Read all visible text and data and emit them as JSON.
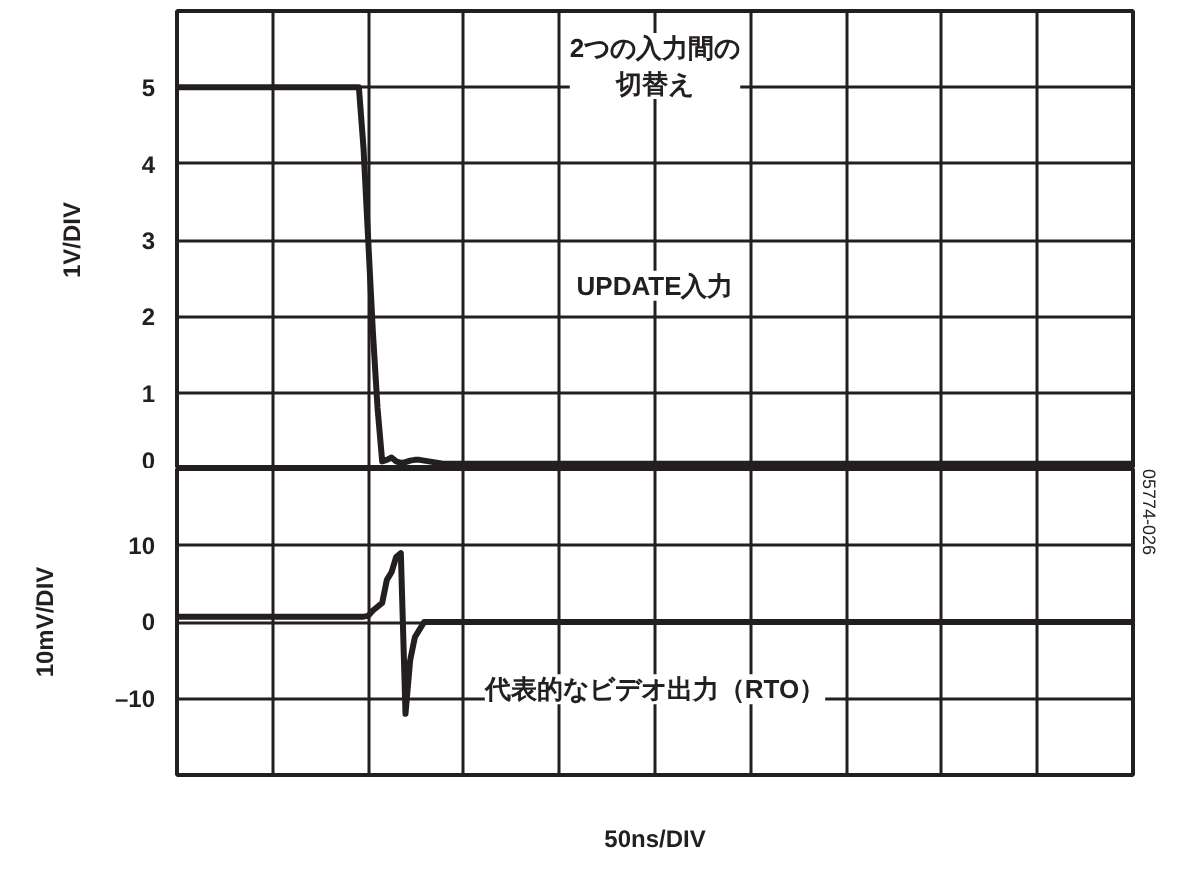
{
  "chart_data": [
    {
      "type": "line",
      "ylabel": "1V/DIV",
      "categories": [
        null,
        null,
        null,
        null,
        null,
        null,
        null,
        null,
        null,
        null,
        null,
        null,
        null,
        null,
        null,
        null,
        null,
        null,
        null,
        null,
        null,
        null,
        null,
        null,
        null,
        null,
        null,
        null,
        null,
        null,
        null,
        null,
        null,
        null,
        null,
        null,
        null,
        null,
        null,
        null,
        null,
        null,
        null,
        null,
        null,
        null,
        null,
        null,
        null,
        null,
        null,
        null,
        null,
        null,
        null,
        null,
        null,
        null,
        null,
        null,
        null,
        null,
        null,
        null,
        null,
        null,
        null,
        null,
        null,
        null,
        null,
        null,
        null,
        null,
        null,
        null,
        null,
        null,
        null,
        null,
        null,
        null,
        null,
        null,
        null,
        null,
        null,
        null,
        null,
        null,
        null,
        null,
        null,
        null,
        null,
        null,
        null,
        null,
        null,
        null,
        null,
        null,
        null,
        null,
        null,
        null,
        null,
        null,
        null,
        null,
        null,
        null,
        null,
        null,
        null,
        null,
        null,
        null,
        null,
        null,
        null,
        null,
        null,
        null,
        null,
        null,
        null,
        null,
        null,
        null,
        null,
        null,
        null,
        null,
        null,
        null,
        null,
        null,
        null,
        null,
        null,
        null,
        null,
        null,
        null,
        null,
        null,
        null,
        null,
        null,
        null,
        null,
        null,
        null,
        null,
        null,
        null,
        null,
        null,
        null,
        null,
        null,
        null,
        null,
        null,
        null,
        null,
        null,
        null,
        null,
        null,
        null,
        null,
        null,
        null,
        null,
        null,
        null,
        null,
        null,
        null,
        null,
        null,
        null,
        null,
        null,
        null,
        null,
        null,
        null,
        null,
        null,
        null,
        null,
        null,
        null,
        null,
        null,
        null,
        null,
        null,
        null,
        null,
        null,
        null,
        null
      ],
      "ylim": [
        0,
        6
      ],
      "yticks": [
        0,
        1,
        2,
        3,
        4,
        5
      ],
      "grid": true,
      "tick_labels": "y",
      "series": [
        {
          "color": "#231f20",
          "values": [
            5,
            5,
            5,
            5,
            5,
            5,
            5,
            5,
            5,
            5,
            5,
            5,
            5,
            5,
            5,
            5,
            5,
            5,
            5,
            5,
            5,
            5,
            5,
            5,
            5,
            5,
            5,
            5,
            5,
            5,
            5,
            5,
            5,
            5,
            5,
            5,
            5,
            5,
            5,
            5,
            4.2,
            3,
            1.8,
            0.8,
            0.1,
            0.12,
            0.15,
            0.1,
            0.08,
            0.09,
            0.11,
            0.12,
            0.12,
            0.11,
            0.1,
            0.09,
            0.08,
            0.07,
            0.07,
            0.07,
            0.07,
            0.07,
            0.07,
            0.07,
            0.07,
            0.07,
            0.07,
            0.07,
            0.07,
            0.07,
            0.07,
            0.07,
            0.07,
            0.07,
            0.07,
            0.07,
            0.07,
            0.07,
            0.07,
            0.07,
            0.07,
            0.07,
            0.07,
            0.07,
            0.07,
            0.07,
            0.07,
            0.07,
            0.07,
            0.07,
            0.07,
            0.07,
            0.07,
            0.07,
            0.07,
            0.07,
            0.07,
            0.07,
            0.07,
            0.07,
            0.07,
            0.07,
            0.07,
            0.07,
            0.07,
            0.07,
            0.07,
            0.07,
            0.07,
            0.07,
            0.07,
            0.07,
            0.07,
            0.07,
            0.07,
            0.07,
            0.07,
            0.07,
            0.07,
            0.07,
            0.07,
            0.07,
            0.07,
            0.07,
            0.07,
            0.07,
            0.07,
            0.07,
            0.07,
            0.07,
            0.07,
            0.07,
            0.07,
            0.07,
            0.07,
            0.07,
            0.07,
            0.07,
            0.07,
            0.07,
            0.07,
            0.07,
            0.07,
            0.07,
            0.07,
            0.07,
            0.07,
            0.07,
            0.07,
            0.07,
            0.07,
            0.07,
            0.07,
            0.07,
            0.07,
            0.07,
            0.07,
            0.07,
            0.07,
            0.07,
            0.07,
            0.07,
            0.07,
            0.07,
            0.07,
            0.07,
            0.07,
            0.07,
            0.07,
            0.07,
            0.07,
            0.07,
            0.07,
            0.07,
            0.07,
            0.07,
            0.07,
            0.07,
            0.07,
            0.07,
            0.07,
            0.07,
            0.07,
            0.07,
            0.07,
            0.07,
            0.07,
            0.07,
            0.07,
            0.07,
            0.07,
            0.07,
            0.07,
            0.07,
            0.07,
            0.07,
            0.07,
            0.07,
            0.07,
            0.07,
            0.07,
            0.07,
            0.07,
            0.07,
            0.07,
            0.07
          ]
        }
      ],
      "annotations": [
        "2つの入力間の切替え",
        "UPDATE入力"
      ]
    },
    {
      "type": "line",
      "ylabel": "10mV/DIV",
      "xlabel": "50ns/DIV",
      "categories": [
        null,
        null,
        null,
        null,
        null,
        null,
        null,
        null,
        null,
        null,
        null,
        null,
        null,
        null,
        null,
        null,
        null,
        null,
        null,
        null,
        null,
        null,
        null,
        null,
        null,
        null,
        null,
        null,
        null,
        null,
        null,
        null,
        null,
        null,
        null,
        null,
        null,
        null,
        null,
        null,
        null,
        null,
        null,
        null,
        null,
        null,
        null,
        null,
        null,
        null,
        null,
        null,
        null,
        null,
        null,
        null,
        null,
        null,
        null,
        null,
        null,
        null,
        null,
        null,
        null,
        null,
        null,
        null,
        null,
        null,
        null,
        null,
        null,
        null,
        null,
        null,
        null,
        null,
        null,
        null,
        null,
        null,
        null,
        null,
        null,
        null,
        null,
        null,
        null,
        null,
        null,
        null,
        null,
        null,
        null,
        null,
        null,
        null,
        null,
        null,
        null,
        null,
        null,
        null,
        null,
        null,
        null,
        null,
        null,
        null,
        null,
        null,
        null,
        null,
        null,
        null,
        null,
        null,
        null,
        null,
        null,
        null,
        null,
        null,
        null,
        null,
        null,
        null,
        null,
        null,
        null,
        null,
        null,
        null,
        null,
        null,
        null,
        null,
        null,
        null,
        null,
        null,
        null,
        null,
        null,
        null,
        null,
        null,
        null,
        null,
        null,
        null,
        null,
        null,
        null,
        null,
        null,
        null,
        null,
        null,
        null,
        null,
        null,
        null,
        null,
        null,
        null,
        null,
        null,
        null,
        null,
        null,
        null,
        null,
        null,
        null,
        null,
        null,
        null,
        null,
        null,
        null,
        null,
        null,
        null,
        null,
        null,
        null,
        null,
        null,
        null,
        null,
        null,
        null,
        null,
        null,
        null,
        null,
        null,
        null,
        null,
        null,
        null,
        null,
        null,
        null
      ],
      "ylim": [
        -20,
        20
      ],
      "yticks": [
        {
          "value": -20,
          "label": null
        },
        {
          "value": -10,
          "label": "–10"
        },
        0,
        10,
        {
          "value": 20,
          "label": null
        }
      ],
      "grid": true,
      "tick_labels": "y",
      "series": [
        {
          "color": "#231f20",
          "values": [
            0.7,
            0.7,
            0.7,
            0.7,
            0.7,
            0.7,
            0.7,
            0.7,
            0.7,
            0.7,
            0.7,
            0.7,
            0.7,
            0.7,
            0.7,
            0.7,
            0.7,
            0.7,
            0.7,
            0.7,
            0.7,
            0.7,
            0.7,
            0.7,
            0.7,
            0.7,
            0.7,
            0.7,
            0.7,
            0.7,
            0.7,
            0.7,
            0.7,
            0.7,
            0.7,
            0.7,
            0.7,
            0.7,
            0.7,
            0.7,
            0.7,
            0.8,
            1.5,
            2,
            2.5,
            5.5,
            6.5,
            8.5,
            9,
            -12,
            -5,
            -2,
            -1,
            0,
            0,
            0,
            0,
            0,
            0,
            0,
            0,
            0,
            0,
            0,
            0,
            0,
            0,
            0,
            0,
            0,
            0,
            0,
            0,
            0,
            0,
            0,
            0,
            0,
            0,
            0,
            0,
            0,
            0,
            0,
            0,
            0,
            0,
            0,
            0,
            0,
            0,
            0,
            0,
            0,
            0,
            0,
            0,
            0,
            0,
            0,
            0,
            0,
            0,
            0,
            0,
            0,
            0,
            0,
            0,
            0,
            0,
            0,
            0,
            0,
            0,
            0,
            0,
            0,
            0,
            0,
            0,
            0,
            0,
            0,
            0,
            0,
            0,
            0,
            0,
            0,
            0,
            0,
            0,
            0,
            0,
            0,
            0,
            0,
            0,
            0,
            0,
            0,
            0,
            0,
            0,
            0,
            0,
            0,
            0,
            0,
            0,
            0,
            0,
            0,
            0,
            0,
            0,
            0,
            0,
            0,
            0,
            0,
            0,
            0,
            0,
            0,
            0,
            0,
            0,
            0,
            0,
            0,
            0,
            0,
            0,
            0,
            0,
            0,
            0,
            0,
            0,
            0,
            0,
            0,
            0,
            0,
            0,
            0,
            0,
            0,
            0,
            0,
            0,
            0,
            0,
            0,
            0,
            0,
            0,
            0,
            0,
            0,
            0,
            0,
            0,
            0
          ]
        }
      ],
      "annotations": [
        "代表的なビデオ出力（RTO）",
        "05774-026"
      ]
    }
  ]
}
